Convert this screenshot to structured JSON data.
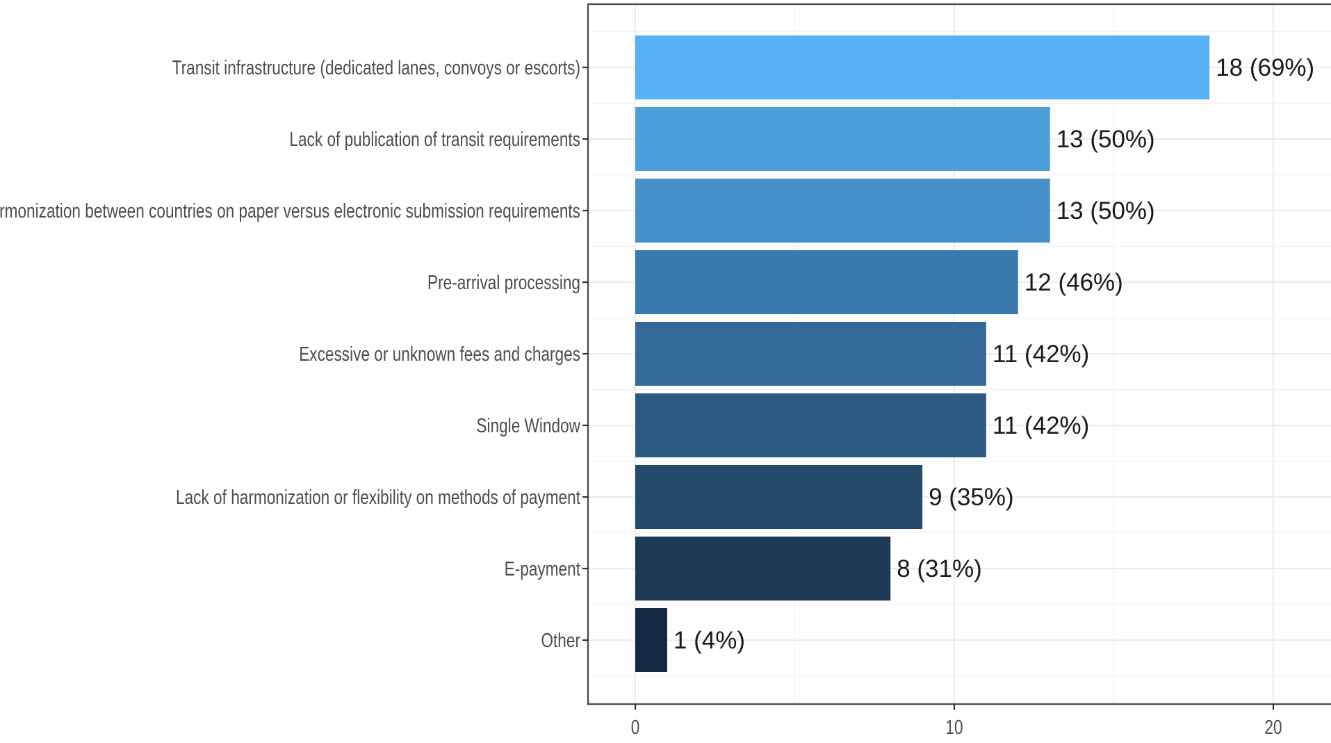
{
  "chart_data": {
    "type": "bar",
    "orientation": "horizontal",
    "title": "",
    "xlabel": "",
    "ylabel": "",
    "xlim": [
      0,
      22
    ],
    "x_ticks": [
      0,
      10,
      20
    ],
    "grid": true,
    "legend": "none",
    "categories": [
      "Transit infrastructure (dedicated lanes, convoys or escorts)",
      "Lack of publication of transit requirements",
      "Lack of harmonization between countries on paper versus electronic submission requirements",
      "Pre-arrival processing",
      "Excessive or unknown fees and charges",
      "Single Window",
      "Lack of harmonization or flexibility on methods of payment",
      "E-payment",
      "Other"
    ],
    "values": [
      18,
      13,
      13,
      12,
      11,
      11,
      9,
      8,
      1
    ],
    "data_labels": [
      "18 (69%)",
      "13 (50%)",
      "13 (50%)",
      "12 (46%)",
      "11 (42%)",
      "11 (42%)",
      "9 (35%)",
      "8 (31%)",
      "1 (4%)"
    ],
    "colors": [
      "#56b1f7",
      "#4d9fdc",
      "#458fca",
      "#3b7ab0",
      "#336a98",
      "#2c5a83",
      "#234a6b",
      "#1c3a56",
      "#142840"
    ]
  }
}
